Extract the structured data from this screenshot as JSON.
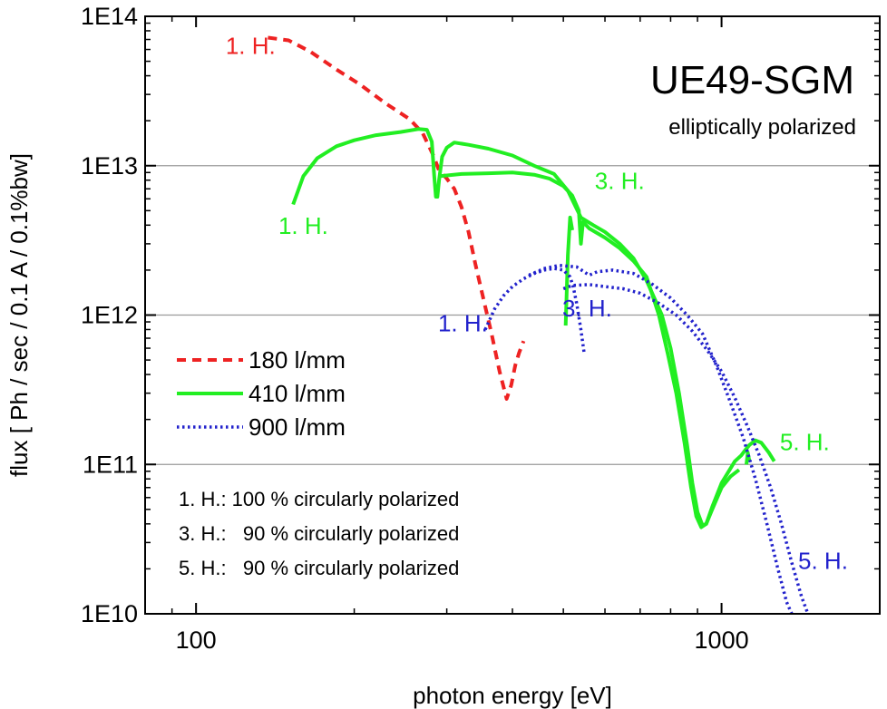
{
  "chart_data": {
    "type": "line",
    "title": "UE49-SGM",
    "subtitle": "elliptically polarized",
    "xlabel": "photon energy [eV]",
    "ylabel": "flux [ Ph / sec / 0.1 A / 0.1%bw]",
    "xscale": "log",
    "yscale": "log",
    "xlim": [
      80,
      2000
    ],
    "ylim": [
      10000000000.0,
      100000000000000.0
    ],
    "x_ticks": [
      {
        "value": 100,
        "label": "100"
      },
      {
        "value": 1000,
        "label": "1000"
      }
    ],
    "y_ticks": [
      {
        "value": 10000000000.0,
        "label": "1E10"
      },
      {
        "value": 100000000000.0,
        "label": "1E11"
      },
      {
        "value": 1000000000000.0,
        "label": "1E12"
      },
      {
        "value": 10000000000000.0,
        "label": "1E13"
      },
      {
        "value": 100000000000000.0,
        "label": "1E14"
      }
    ],
    "grid": "horizontal at major y ticks",
    "legend_position": "left",
    "colors": {
      "red": "#ee2222",
      "green": "#22ee22",
      "blue": "#2222cc"
    },
    "series": [
      {
        "name": "180 l/mm",
        "style": "dashed",
        "color": "#ee2222",
        "segments": [
          [
            [
              137,
              72000000000000.0
            ],
            [
              150,
              69000000000000.0
            ],
            [
              165,
              58000000000000.0
            ],
            [
              185,
              44000000000000.0
            ],
            [
              205,
              35000000000000.0
            ],
            [
              230,
              26000000000000.0
            ],
            [
              255,
              20500000000000.0
            ],
            [
              270,
              16500000000000.0
            ],
            [
              282,
              12000000000000.0
            ],
            [
              290,
              9300000000000.0
            ],
            [
              300,
              8200000000000.0
            ],
            [
              310,
              7000000000000.0
            ],
            [
              320,
              5300000000000.0
            ],
            [
              330,
              3600000000000.0
            ],
            [
              340,
              2200000000000.0
            ],
            [
              352,
              1300000000000.0
            ],
            [
              365,
              750000000000.0
            ],
            [
              378,
              420000000000.0
            ],
            [
              390,
              275000000000.0
            ],
            [
              398,
              340000000000.0
            ],
            [
              405,
              460000000000.0
            ],
            [
              412,
              560000000000.0
            ],
            [
              420,
              670000000000.0
            ]
          ]
        ]
      },
      {
        "name": "410 l/mm",
        "style": "solid",
        "color": "#22ee22",
        "segments": [
          [
            [
              153,
              5500000000000.0
            ],
            [
              160,
              8500000000000.0
            ],
            [
              170,
              11200000000000.0
            ],
            [
              185,
              13500000000000.0
            ],
            [
              200,
              14800000000000.0
            ],
            [
              220,
              16000000000000.0
            ],
            [
              245,
              16800000000000.0
            ],
            [
              265,
              17600000000000.0
            ],
            [
              275,
              17400000000000.0
            ],
            [
              281,
              14500000000000.0
            ],
            [
              284,
              8500000000000.0
            ],
            [
              286,
              6200000000000.0
            ],
            [
              288,
              6200000000000.0
            ],
            [
              290,
              8000000000000.0
            ],
            [
              294,
              11500000000000.0
            ],
            [
              300,
              13200000000000.0
            ],
            [
              310,
              14300000000000.0
            ],
            [
              330,
              13800000000000.0
            ],
            [
              360,
              13000000000000.0
            ],
            [
              400,
              11700000000000.0
            ],
            [
              440,
              10000000000000.0
            ],
            [
              480,
              8800000000000.0
            ],
            [
              510,
              6800000000000.0
            ],
            [
              540,
              4500000000000.0
            ],
            [
              570,
              4000000000000.0
            ],
            [
              600,
              3600000000000.0
            ],
            [
              640,
              3000000000000.0
            ],
            [
              680,
              2400000000000.0
            ],
            [
              720,
              1700000000000.0
            ],
            [
              770,
              1000000000000.0
            ],
            [
              800,
              600000000000.0
            ],
            [
              830,
              300000000000.0
            ],
            [
              860,
              135000000000.0
            ],
            [
              880,
              75000000000.0
            ],
            [
              900,
              48000000000.0
            ],
            [
              920,
              39000000000.0
            ],
            [
              935,
              40000000000.0
            ],
            [
              960,
              50000000000.0
            ],
            [
              1000,
              70000000000.0
            ],
            [
              1040,
              83000000000.0
            ],
            [
              1080,
              92000000000.0
            ]
          ],
          [
            [
              290,
              8500000000000.0
            ],
            [
              320,
              8800000000000.0
            ],
            [
              360,
              8900000000000.0
            ],
            [
              400,
              9000000000000.0
            ],
            [
              440,
              8700000000000.0
            ],
            [
              470,
              8200000000000.0
            ],
            [
              500,
              7300000000000.0
            ],
            [
              520,
              6300000000000.0
            ],
            [
              535,
              5000000000000.0
            ],
            [
              540,
              3000000000000.0
            ],
            [
              545,
              4200000000000.0
            ],
            [
              560,
              3800000000000.0
            ],
            [
              600,
              3300000000000.0
            ],
            [
              640,
              2800000000000.0
            ],
            [
              680,
              2300000000000.0
            ],
            [
              720,
              1800000000000.0
            ],
            [
              760,
              1000000000000.0
            ],
            [
              790,
              550000000000.0
            ],
            [
              820,
              300000000000.0
            ],
            [
              850,
              140000000000.0
            ],
            [
              875,
              70000000000.0
            ],
            [
              895,
              45000000000.0
            ],
            [
              915,
              38000000000.0
            ],
            [
              935,
              40000000000.0
            ],
            [
              960,
              52000000000.0
            ],
            [
              1000,
              75000000000.0
            ],
            [
              1060,
              105000000000.0
            ],
            [
              1090,
              115000000000.0
            ],
            [
              1110,
              125000000000.0
            ],
            [
              1130,
              135000000000.0
            ],
            [
              1160,
              145000000000.0
            ],
            [
              1190,
              140000000000.0
            ],
            [
              1230,
              120000000000.0
            ],
            [
              1260,
              105000000000.0
            ]
          ],
          [
            [
              505,
              850000000000.0
            ],
            [
              510,
              2500000000000.0
            ],
            [
              515,
              4500000000000.0
            ],
            [
              520,
              3700000000000.0
            ]
          ],
          [
            [
              1115,
              100000000000.0
            ],
            [
              1122,
              120000000000.0
            ],
            [
              1130,
              105000000000.0
            ]
          ]
        ]
      },
      {
        "name": "900 l/mm",
        "style": "dotted",
        "color": "#2222cc",
        "segments": [
          [
            [
              355,
              800000000000.0
            ],
            [
              370,
              1100000000000.0
            ],
            [
              385,
              1350000000000.0
            ],
            [
              400,
              1550000000000.0
            ],
            [
              420,
              1750000000000.0
            ],
            [
              440,
              1900000000000.0
            ],
            [
              460,
              2000000000000.0
            ],
            [
              480,
              2050000000000.0
            ],
            [
              500,
              2000000000000.0
            ],
            [
              515,
              1800000000000.0
            ],
            [
              522,
              1550000000000.0
            ],
            [
              530,
              1200000000000.0
            ],
            [
              540,
              800000000000.0
            ],
            [
              548,
              550000000000.0
            ]
          ],
          [
            [
              430,
              1850000000000.0
            ],
            [
              460,
              2050000000000.0
            ],
            [
              490,
              2150000000000.0
            ],
            [
              530,
              2100000000000.0
            ],
            [
              560,
              1850000000000.0
            ],
            [
              580,
              1950000000000.0
            ],
            [
              620,
              2000000000000.0
            ],
            [
              680,
              1900000000000.0
            ],
            [
              740,
              1600000000000.0
            ],
            [
              800,
              1300000000000.0
            ],
            [
              860,
              1000000000000.0
            ],
            [
              920,
              750000000000.0
            ],
            [
              980,
              450000000000.0
            ],
            [
              1040,
              260000000000.0
            ],
            [
              1100,
              150000000000.0
            ],
            [
              1160,
              80000000000.0
            ],
            [
              1220,
              40000000000.0
            ],
            [
              1280,
              20000000000.0
            ],
            [
              1330,
              12000000000.0
            ],
            [
              1360,
              10000000000.0
            ]
          ],
          [
            [
              500,
              1500000000000.0
            ],
            [
              520,
              1580000000000.0
            ],
            [
              560,
              1600000000000.0
            ],
            [
              600,
              1550000000000.0
            ],
            [
              650,
              1500000000000.0
            ],
            [
              700,
              1400000000000.0
            ],
            [
              760,
              1200000000000.0
            ],
            [
              820,
              1000000000000.0
            ],
            [
              880,
              780000000000.0
            ],
            [
              940,
              580000000000.0
            ],
            [
              1000,
              420000000000.0
            ],
            [
              1060,
              280000000000.0
            ],
            [
              1120,
              180000000000.0
            ],
            [
              1180,
              115000000000.0
            ],
            [
              1240,
              70000000000.0
            ],
            [
              1300,
              40000000000.0
            ],
            [
              1360,
              22000000000.0
            ],
            [
              1420,
              13000000000.0
            ],
            [
              1460,
              10000000000.0
            ]
          ]
        ]
      }
    ],
    "annotations": [
      {
        "text": "1. H.",
        "color": "#ee2222",
        "x": 127,
        "y": 56000000000000.0
      },
      {
        "text": "1. H.",
        "color": "#22ee22",
        "x": 160,
        "y": 3500000000000.0
      },
      {
        "text": "3. H.",
        "color": "#22ee22",
        "x": 640,
        "y": 7000000000000.0
      },
      {
        "text": "5. H.",
        "color": "#22ee22",
        "x": 1440,
        "y": 125000000000.0
      },
      {
        "text": "1. H.",
        "color": "#2222cc",
        "x": 322,
        "y": 780000000000.0
      },
      {
        "text": "3. H.",
        "color": "#2222cc",
        "x": 555,
        "y": 980000000000.0
      },
      {
        "text": "5. H.",
        "color": "#2222cc",
        "x": 1560,
        "y": 20000000000.0
      }
    ],
    "notes": [
      "1. H.: 100 % circularly polarized",
      "3. H.:   90 % circularly polarized",
      "5. H.:   90 % circularly polarized"
    ]
  }
}
